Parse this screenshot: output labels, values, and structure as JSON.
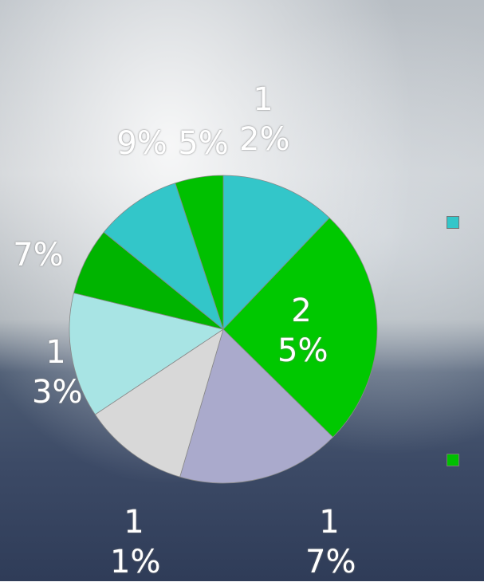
{
  "chart_data": {
    "type": "pie",
    "values": [
      12,
      25,
      17,
      11,
      13,
      7,
      9,
      5
    ],
    "value_labels": [
      "12%",
      "25%",
      "17%",
      "11%",
      "13%",
      "7%",
      "9%",
      "5%"
    ],
    "colors": [
      "#33c6c9",
      "#00c800",
      "#aaaacc",
      "#d8d8d8",
      "#a8e4e4",
      "#00b400",
      "#33c6c9",
      "#00c000"
    ]
  }
}
